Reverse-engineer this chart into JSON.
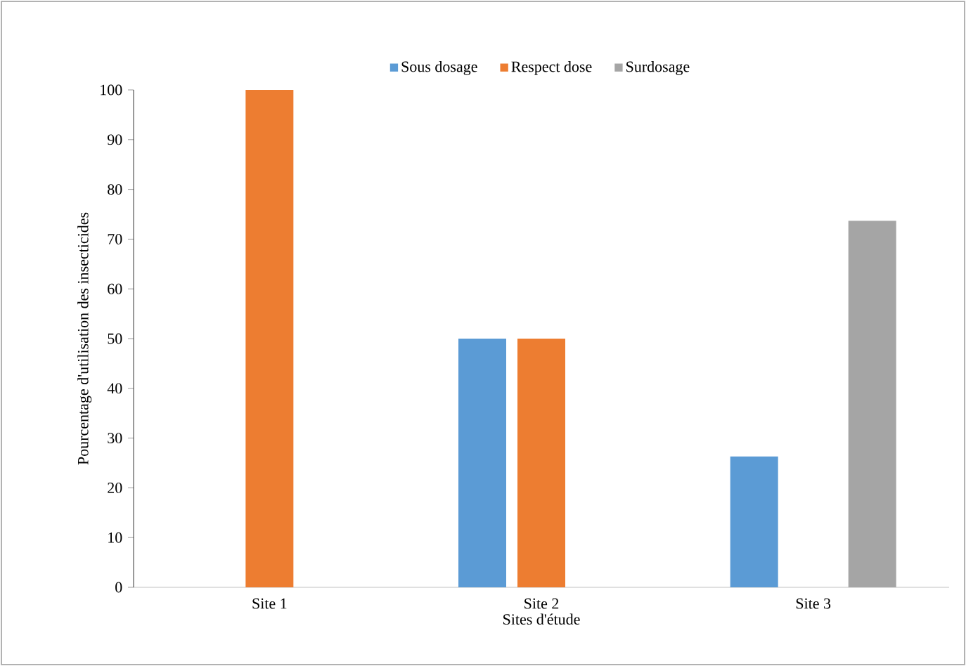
{
  "chart_data": {
    "type": "bar",
    "xlabel": "Sites d'étude",
    "ylabel": "Pourcentage d'utilisation des insecticides",
    "categories": [
      "Site 1",
      "Site 2",
      "Site 3"
    ],
    "series": [
      {
        "name": "Sous dosage",
        "color": "#5b9bd5",
        "values": [
          0,
          50,
          26.3
        ]
      },
      {
        "name": "Respect dose",
        "color": "#ed7d31",
        "values": [
          100,
          50,
          0
        ]
      },
      {
        "name": "Surdosage",
        "color": "#a5a5a5",
        "values": [
          0,
          0,
          73.7
        ]
      }
    ],
    "ylim": [
      0,
      100
    ],
    "yticks": [
      0,
      10,
      20,
      30,
      40,
      50,
      60,
      70,
      80,
      90,
      100
    ],
    "grid": false,
    "legend": "top"
  }
}
